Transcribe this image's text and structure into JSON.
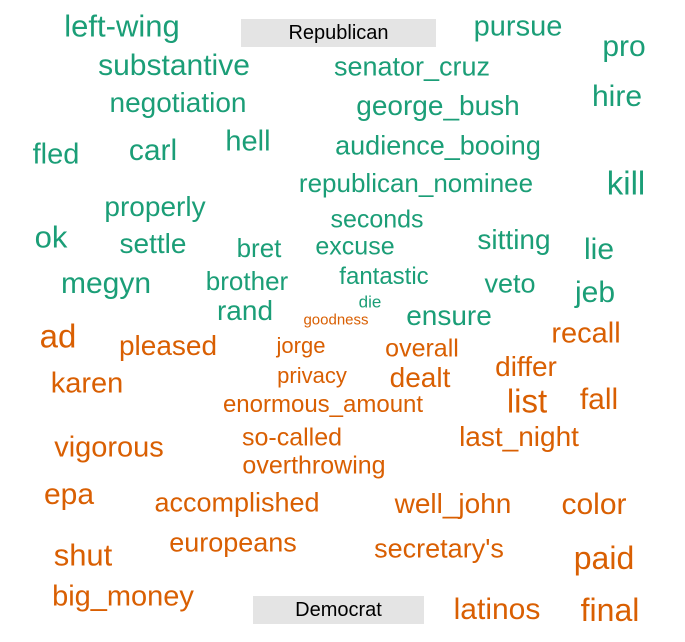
{
  "chart_data": {
    "type": "word-cloud",
    "groups": [
      {
        "label": "Republican",
        "color": "#1b9e77",
        "words": [
          "left-wing",
          "pursue",
          "pro",
          "substantive",
          "senator_cruz",
          "hire",
          "negotiation",
          "george_bush",
          "fled",
          "carl",
          "hell",
          "audience_booing",
          "kill",
          "republican_nominee",
          "properly",
          "seconds",
          "ok",
          "settle",
          "bret",
          "excuse",
          "sitting",
          "lie",
          "megyn",
          "brother",
          "fantastic",
          "veto",
          "jeb",
          "rand",
          "die",
          "ensure"
        ]
      },
      {
        "label": "Democrat",
        "color": "#d95f02",
        "words": [
          "goodness",
          "ad",
          "pleased",
          "jorge",
          "overall",
          "recall",
          "karen",
          "privacy",
          "dealt",
          "differ",
          "list",
          "fall",
          "enormous_amount",
          "vigorous",
          "so-called",
          "last_night",
          "overthrowing",
          "epa",
          "accomplished",
          "well_john",
          "color",
          "shut",
          "europeans",
          "secretary's",
          "paid",
          "big_money",
          "latinos",
          "final"
        ]
      }
    ]
  }
}
